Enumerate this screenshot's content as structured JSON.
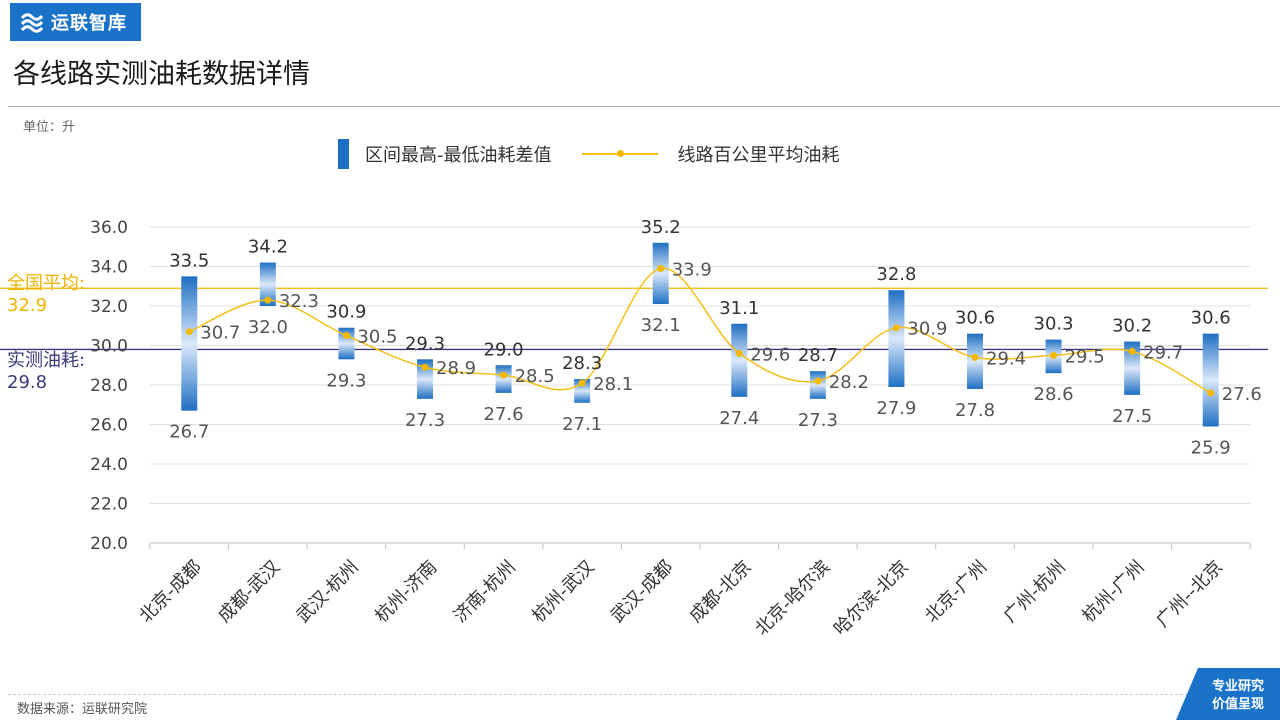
{
  "header": {
    "logo_text": "运联智库",
    "title": "各线路实测油耗数据详情",
    "unit": "单位：升"
  },
  "footer": {
    "source": "数据来源：运联研究院",
    "badge_line1": "专业研究",
    "badge_line2": "价值呈现"
  },
  "reference_lines": {
    "national_label": "全国平均:",
    "national_value": "32.9",
    "measured_label": "实测油耗:",
    "measured_value": "29.8"
  },
  "colors": {
    "brand": "#1a73c9",
    "bar": "#1e6fc3",
    "avg_line": "#f5c01a",
    "avg_marker": "#f5b800",
    "national_line": "#f0b400",
    "measured_line": "#3a3a7a"
  },
  "chart_data": {
    "type": "bar",
    "title": "各线路实测油耗数据详情",
    "ylabel": "单位：升",
    "ylim": [
      20,
      36
    ],
    "yticks": [
      "20.0",
      "22.0",
      "24.0",
      "26.0",
      "28.0",
      "30.0",
      "32.0",
      "34.0",
      "36.0"
    ],
    "legend_position": "top",
    "categories": [
      "北京-成都",
      "成都-武汉",
      "武汉-杭州",
      "杭州-济南",
      "济南-杭州",
      "杭州-武汉",
      "武汉-成都",
      "成都-北京",
      "北京-哈尔滨",
      "哈尔滨-北京",
      "北京-广州",
      "广州-杭州",
      "杭州-广州",
      "广州--北京"
    ],
    "series": [
      {
        "name": "区间最高-最低油耗差值",
        "type": "floating-bar",
        "high": [
          33.5,
          34.2,
          30.9,
          29.3,
          29.0,
          28.3,
          35.2,
          31.1,
          28.7,
          32.8,
          30.6,
          30.3,
          30.2,
          30.6
        ],
        "low": [
          26.7,
          32.0,
          29.3,
          27.3,
          27.6,
          27.1,
          32.1,
          27.4,
          27.3,
          27.9,
          27.8,
          28.6,
          27.5,
          25.9
        ],
        "high_labels": [
          "33.5",
          "34.2",
          "30.9",
          "29.3",
          "29.0",
          "28.3",
          "35.2",
          "31.1",
          "28.7",
          "32.8",
          "30.6",
          "30.3",
          "30.2",
          "30.6"
        ],
        "low_labels": [
          "26.7",
          "32.0",
          "29.3",
          "27.3",
          "27.6",
          "27.1",
          "32.1",
          "27.4",
          "27.3",
          "27.9",
          "27.8",
          "28.6",
          "27.5",
          "25.9"
        ]
      },
      {
        "name": "线路百公里平均油耗",
        "type": "line",
        "values": [
          30.7,
          32.3,
          30.5,
          28.9,
          28.5,
          28.1,
          33.9,
          29.6,
          28.2,
          30.9,
          29.4,
          29.5,
          29.7,
          27.6
        ],
        "labels": [
          "30.7",
          "32.3",
          "30.5",
          "28.9",
          "28.5",
          "28.1",
          "33.9",
          "29.6",
          "28.2",
          "30.9",
          "29.4",
          "29.5",
          "29.7",
          "27.6"
        ]
      }
    ],
    "reference_values": {
      "national_average": 32.9,
      "measured": 29.8
    }
  }
}
